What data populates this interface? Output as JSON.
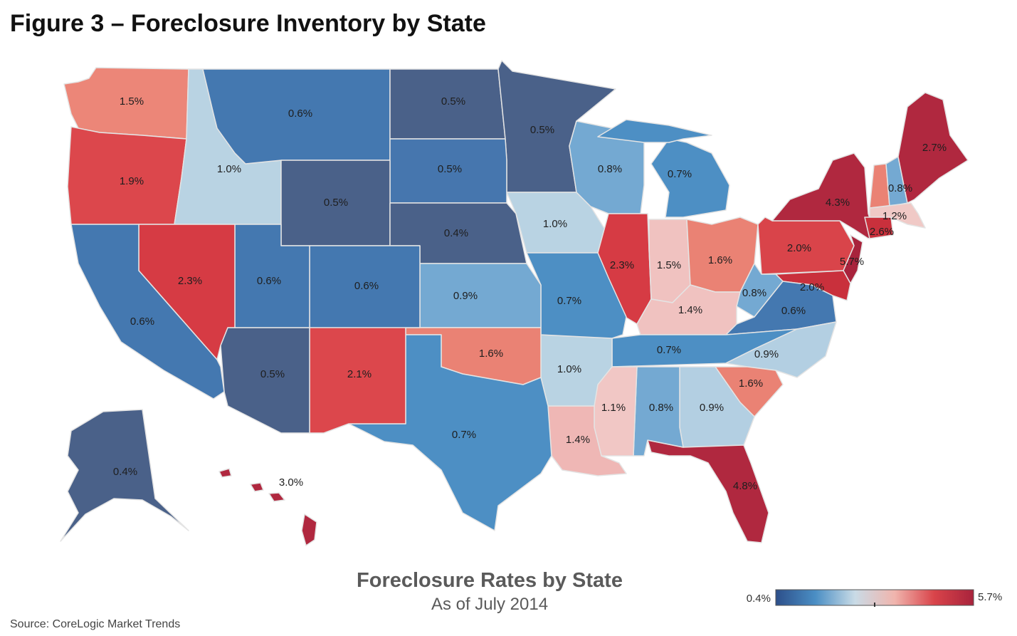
{
  "title": "Figure 3 – Foreclosure Inventory by State",
  "map": {
    "title": "Foreclosure Rates by State",
    "subtitle": "As of July 2014",
    "states": [
      {
        "label": "1.5%",
        "color": "#ec8678"
      },
      {
        "label": "1.9%",
        "color": "#dc474c"
      },
      {
        "label": "1.0%",
        "color": "#b9d3e3"
      },
      {
        "label": "0.6%",
        "color": "#4478b0"
      },
      {
        "label": "0.5%",
        "color": "#4a6189"
      },
      {
        "label": "0.5%",
        "color": "#4a6189"
      },
      {
        "label": "0.5%",
        "color": "#4676ae"
      },
      {
        "label": "0.5%",
        "color": "#4a6189"
      },
      {
        "label": "0.4%",
        "color": "#4a6189"
      },
      {
        "label": "1.0%",
        "color": "#b9d3e3"
      },
      {
        "label": "0.8%",
        "color": "#74a9d2"
      },
      {
        "label": "0.7%",
        "color": "#4d8fc4"
      },
      {
        "label": "2.3%",
        "color": "#d63b44"
      },
      {
        "label": "1.5%",
        "color": "#f0c2c0"
      },
      {
        "label": "1.6%",
        "color": "#ea8274"
      },
      {
        "label": "2.0%",
        "color": "#d9444a"
      },
      {
        "label": "4.3%",
        "color": "#b0283f"
      },
      {
        "color": "#ea8274"
      },
      {
        "label": "0.8%",
        "color": "#74a9d2"
      },
      {
        "label": "2.7%",
        "color": "#b0283f"
      },
      {
        "label": "1.2%",
        "color": "#f0c9c6"
      },
      {
        "label": "2.6%",
        "color": "#c9303c"
      },
      {
        "label": "5.7%",
        "color": "#a8233c"
      },
      {
        "label": "2.0%",
        "color": "#c9303c"
      },
      {
        "label": "0.8%",
        "color": "#74a9d2"
      },
      {
        "label": "0.6%",
        "color": "#4478b0"
      },
      {
        "label": "1.4%",
        "color": "#f0c2c0"
      },
      {
        "label": "0.7%",
        "color": "#4d8fc4"
      },
      {
        "label": "0.9%",
        "color": "#b3cfe2"
      },
      {
        "label": "1.6%",
        "color": "#ea8274"
      },
      {
        "label": "0.9%",
        "color": "#b3cfe2"
      },
      {
        "label": "4.8%",
        "color": "#b0283f"
      },
      {
        "label": "0.8%",
        "color": "#74a9d2"
      },
      {
        "label": "1.1%",
        "color": "#f1c7c5"
      },
      {
        "label": "1.4%",
        "color": "#efb7b5"
      },
      {
        "label": "1.0%",
        "color": "#b9d3e3"
      },
      {
        "label": "0.7%",
        "color": "#4d8fc4"
      },
      {
        "label": "0.9%",
        "color": "#74a9d2"
      },
      {
        "label": "1.6%",
        "color": "#ea8274"
      },
      {
        "label": "0.7%",
        "color": "#4d8fc4"
      },
      {
        "label": "2.1%",
        "color": "#dc474c"
      },
      {
        "label": "0.5%",
        "color": "#4a6189"
      },
      {
        "label": "0.6%",
        "color": "#4478b0"
      },
      {
        "label": "0.6%",
        "color": "#4478b0"
      },
      {
        "label": "2.3%",
        "color": "#d63b44"
      },
      {
        "label": "0.6%",
        "color": "#4478b0"
      },
      {
        "label": "0.4%",
        "color": "#4a6189"
      },
      {
        "label": "3.0%",
        "color": "#b0283f"
      }
    ]
  },
  "legend": {
    "min": "0.4%",
    "max": "5.7%",
    "colors": [
      "#2d4f8a",
      "#4a8ec4",
      "#c9dbe6",
      "#f0b5ae",
      "#d9444a",
      "#a8233c"
    ]
  },
  "source": "Source: CoreLogic Market Trends"
}
